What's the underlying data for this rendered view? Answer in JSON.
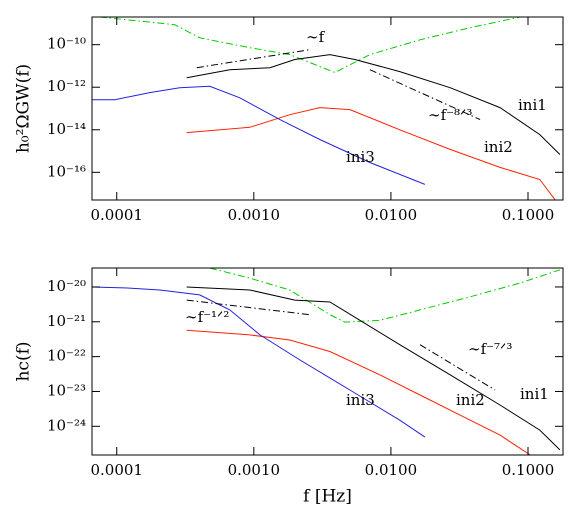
{
  "chart_data": [
    {
      "type": "line",
      "log_x": true,
      "log_y": true,
      "ylabel": "h₀²ΩGW(f)",
      "xlim": [
        6.6e-05,
        0.18
      ],
      "ylim": [
        5e-18,
        2e-09
      ],
      "xticks": [
        0.0001,
        {
          "value": 0.001,
          "label": "0.0010"
        },
        {
          "value": 0.01,
          "label": "0.0100"
        },
        {
          "value": 0.1,
          "label": "0.1000"
        }
      ],
      "yticks": [
        {
          "value": 1e-10,
          "label": "10⁻¹⁰"
        },
        {
          "value": 1e-12,
          "label": "10⁻¹²"
        },
        {
          "value": 1e-14,
          "label": "10⁻¹⁴"
        },
        {
          "value": 1e-16,
          "label": "10⁻¹⁶"
        }
      ],
      "series": [
        {
          "color": "#00cc00",
          "dash": "dashdot",
          "x": [
            7.5e-05,
            0.000265,
            0.000403,
            0.000935,
            0.00183,
            0.0039,
            0.00703,
            0.0163,
            0.0378,
            0.0875
          ],
          "values": [
            2e-09,
            8.7e-10,
            2.1e-10,
            7.2e-11,
            3.4e-11,
            4.9e-12,
            3.4e-11,
            1.7e-10,
            6.3e-10,
            2e-09
          ]
        },
        {
          "name": "ini1",
          "color": "#000000",
          "dash": "solid",
          "x": [
            0.000324,
            0.000668,
            0.00131,
            0.00199,
            0.00359,
            0.00546,
            0.0116,
            0.027,
            0.0625,
            0.122,
            0.171
          ],
          "values": [
            2.8e-12,
            6.7e-12,
            8.3e-12,
            2e-11,
            3.4e-11,
            2e-11,
            5.4e-12,
            9.5e-13,
            1.1e-13,
            5.9e-15,
            6.9e-16
          ]
        },
        {
          "name": "ini2",
          "color": "#ff2200",
          "dash": "solid",
          "x": [
            0.000324,
            0.000935,
            0.00183,
            0.00303,
            0.00502,
            0.0116,
            0.027,
            0.0625,
            0.122,
            0.157
          ],
          "values": [
            7.4e-15,
            1.3e-14,
            5.1e-14,
            1.1e-13,
            8.9e-14,
            1e-14,
            1.2e-15,
            1.7e-16,
            4.6e-17,
            5.2e-18
          ]
        },
        {
          "name": "ini3",
          "color": "#2222dd",
          "dash": "solid",
          "x": [
            6.6e-05,
            9.7e-05,
            0.000174,
            0.000288,
            0.000477,
            0.00079,
            0.00155,
            0.00303,
            0.00703,
            0.0177
          ],
          "values": [
            2.6e-13,
            2.6e-13,
            5.6e-13,
            9.5e-13,
            1.1e-12,
            3.2e-13,
            3e-14,
            3.5e-15,
            2.9e-16,
            2.7e-17
          ]
        },
        {
          "name": "∼f",
          "color": "#000000",
          "dash": "dashdot",
          "x": [
            0.000384,
            0.00256
          ],
          "values": [
            8.3e-12,
            5.8e-11
          ]
        },
        {
          "name": "∼f⁻⁸ᐟ³",
          "color": "#000000",
          "dash": "dashdot",
          "x": [
            0.00703,
            0.0447
          ],
          "values": [
            6.7e-12,
            3e-14
          ]
        }
      ]
    },
    {
      "type": "line",
      "log_x": true,
      "log_y": true,
      "ylabel": "hc(f)",
      "xlabel": "f [Hz]",
      "xlim": [
        6.6e-05,
        0.18
      ],
      "ylim": [
        1.5e-25,
        3.5e-20
      ],
      "xticks": [
        0.0001,
        {
          "value": 0.001,
          "label": "0.0010"
        },
        {
          "value": 0.01,
          "label": "0.0100"
        },
        {
          "value": 0.1,
          "label": "0.1000"
        }
      ],
      "yticks": [
        {
          "value": 1e-20,
          "label": "10⁻²⁰"
        },
        {
          "value": 1e-21,
          "label": "10⁻²¹"
        },
        {
          "value": 1e-22,
          "label": "10⁻²²"
        },
        {
          "value": 1e-23,
          "label": "10⁻²³"
        },
        {
          "value": 1e-24,
          "label": "10⁻²⁴"
        }
      ],
      "series": [
        {
          "color": "#00cc00",
          "dash": "dashdot",
          "x": [
            0.000477,
            0.000935,
            0.00183,
            0.00359,
            0.00461,
            0.0083,
            0.0163,
            0.0378,
            0.0875,
            0.171
          ],
          "values": [
            3.5e-20,
            1.8e-20,
            8.2e-21,
            1.6e-21,
            9.8e-22,
            1.1e-21,
            2.2e-21,
            5.2e-21,
            1.3e-20,
            3.1e-20
          ]
        },
        {
          "name": "ini1",
          "color": "#000000",
          "dash": "solid",
          "x": [
            0.000324,
            0.000935,
            0.00199,
            0.00359,
            0.00594,
            0.0116,
            0.027,
            0.0625,
            0.122,
            0.171
          ],
          "values": [
            1e-20,
            8.2e-21,
            4.2e-21,
            3.7e-21,
            1.1e-21,
            2.2e-22,
            3e-23,
            4.1e-24,
            7.8e-25,
            2.1e-25
          ]
        },
        {
          "name": "ini2",
          "color": "#ff2200",
          "dash": "solid",
          "x": [
            0.000324,
            0.000935,
            0.00183,
            0.00359,
            0.0083,
            0.0163,
            0.0319,
            0.0625,
            0.104
          ],
          "values": [
            5.7e-22,
            4.2e-22,
            3e-22,
            1.4e-22,
            3e-23,
            7.9e-24,
            2.1e-24,
            5.6e-25,
            1.5e-25
          ]
        },
        {
          "name": "ini3",
          "color": "#2222dd",
          "dash": "solid",
          "x": [
            6.6e-05,
            0.000124,
            0.000206,
            0.000403,
            0.000668,
            0.00111,
            0.00217,
            0.00502,
            0.0116,
            0.0177
          ],
          "values": [
            1e-20,
            9.3e-21,
            8.2e-21,
            5.9e-21,
            2.2e-21,
            4.2e-22,
            8e-23,
            1.1e-23,
            1.5e-24,
            4.9e-25
          ]
        },
        {
          "name": "∼f⁻¹ᐟ²",
          "color": "#000000",
          "dash": "dashdot",
          "x": [
            0.000324,
            0.00256
          ],
          "values": [
            4.2e-21,
            1.6e-21
          ]
        },
        {
          "name": "∼f⁻⁷ᐟ³",
          "color": "#000000",
          "dash": "dashdot",
          "x": [
            0.0163,
            0.0575
          ],
          "values": [
            2.2e-22,
            1.1e-23
          ]
        }
      ]
    }
  ]
}
